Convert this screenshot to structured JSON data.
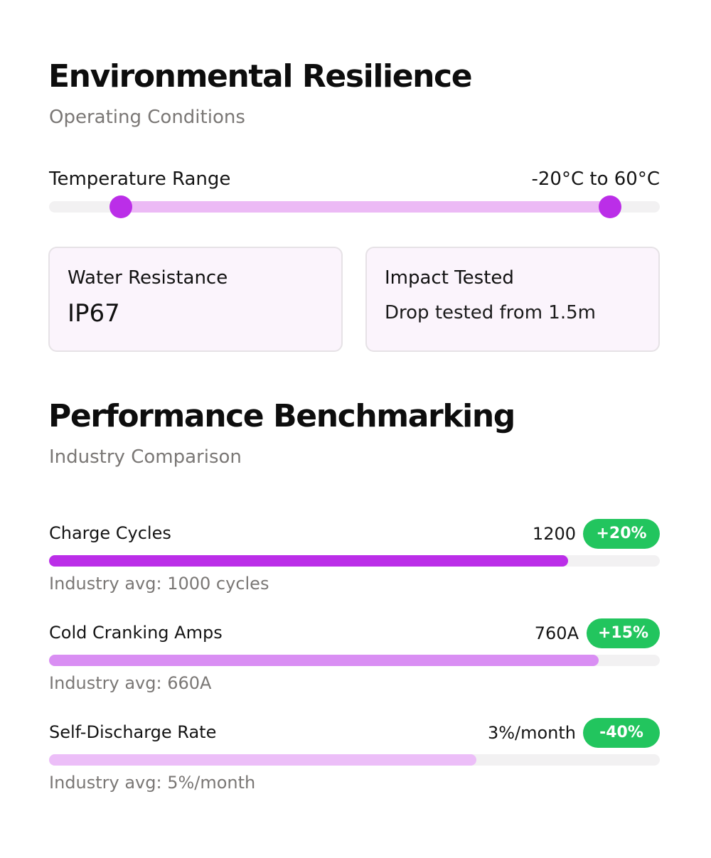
{
  "environmental": {
    "title": "Environmental Resilience",
    "subtitle": "Operating Conditions",
    "temperature": {
      "label": "Temperature Range",
      "value": "-20°C to 60°C",
      "range_min_fraction": 0.118,
      "range_max_fraction": 0.918
    },
    "cards": [
      {
        "title": "Water Resistance",
        "value": "IP67"
      },
      {
        "title": "Impact Tested",
        "value": "Drop tested from 1.5m"
      }
    ]
  },
  "performance": {
    "title": "Performance Benchmarking",
    "subtitle": "Industry Comparison",
    "items": [
      {
        "label": "Charge Cycles",
        "value": "1200",
        "badge": "+20%",
        "avg": "Industry avg: 1000 cycles",
        "fill_fraction": 0.85,
        "color": "#bb2ee8"
      },
      {
        "label": "Cold Cranking Amps",
        "value": "760A",
        "badge": "+15%",
        "avg": "Industry avg: 660A",
        "fill_fraction": 0.9,
        "color": "#d98ef3"
      },
      {
        "label": "Self-Discharge Rate",
        "value": "3%/month",
        "badge": "-40%",
        "avg": "Industry avg: 5%/month",
        "fill_fraction": 0.7,
        "color": "#ecbef8"
      }
    ]
  },
  "colors": {
    "accent": "#bb2ee8",
    "range_fill": "#ecbaf5",
    "badge_green": "#22c55e",
    "card_bg": "#fbf4fc"
  }
}
